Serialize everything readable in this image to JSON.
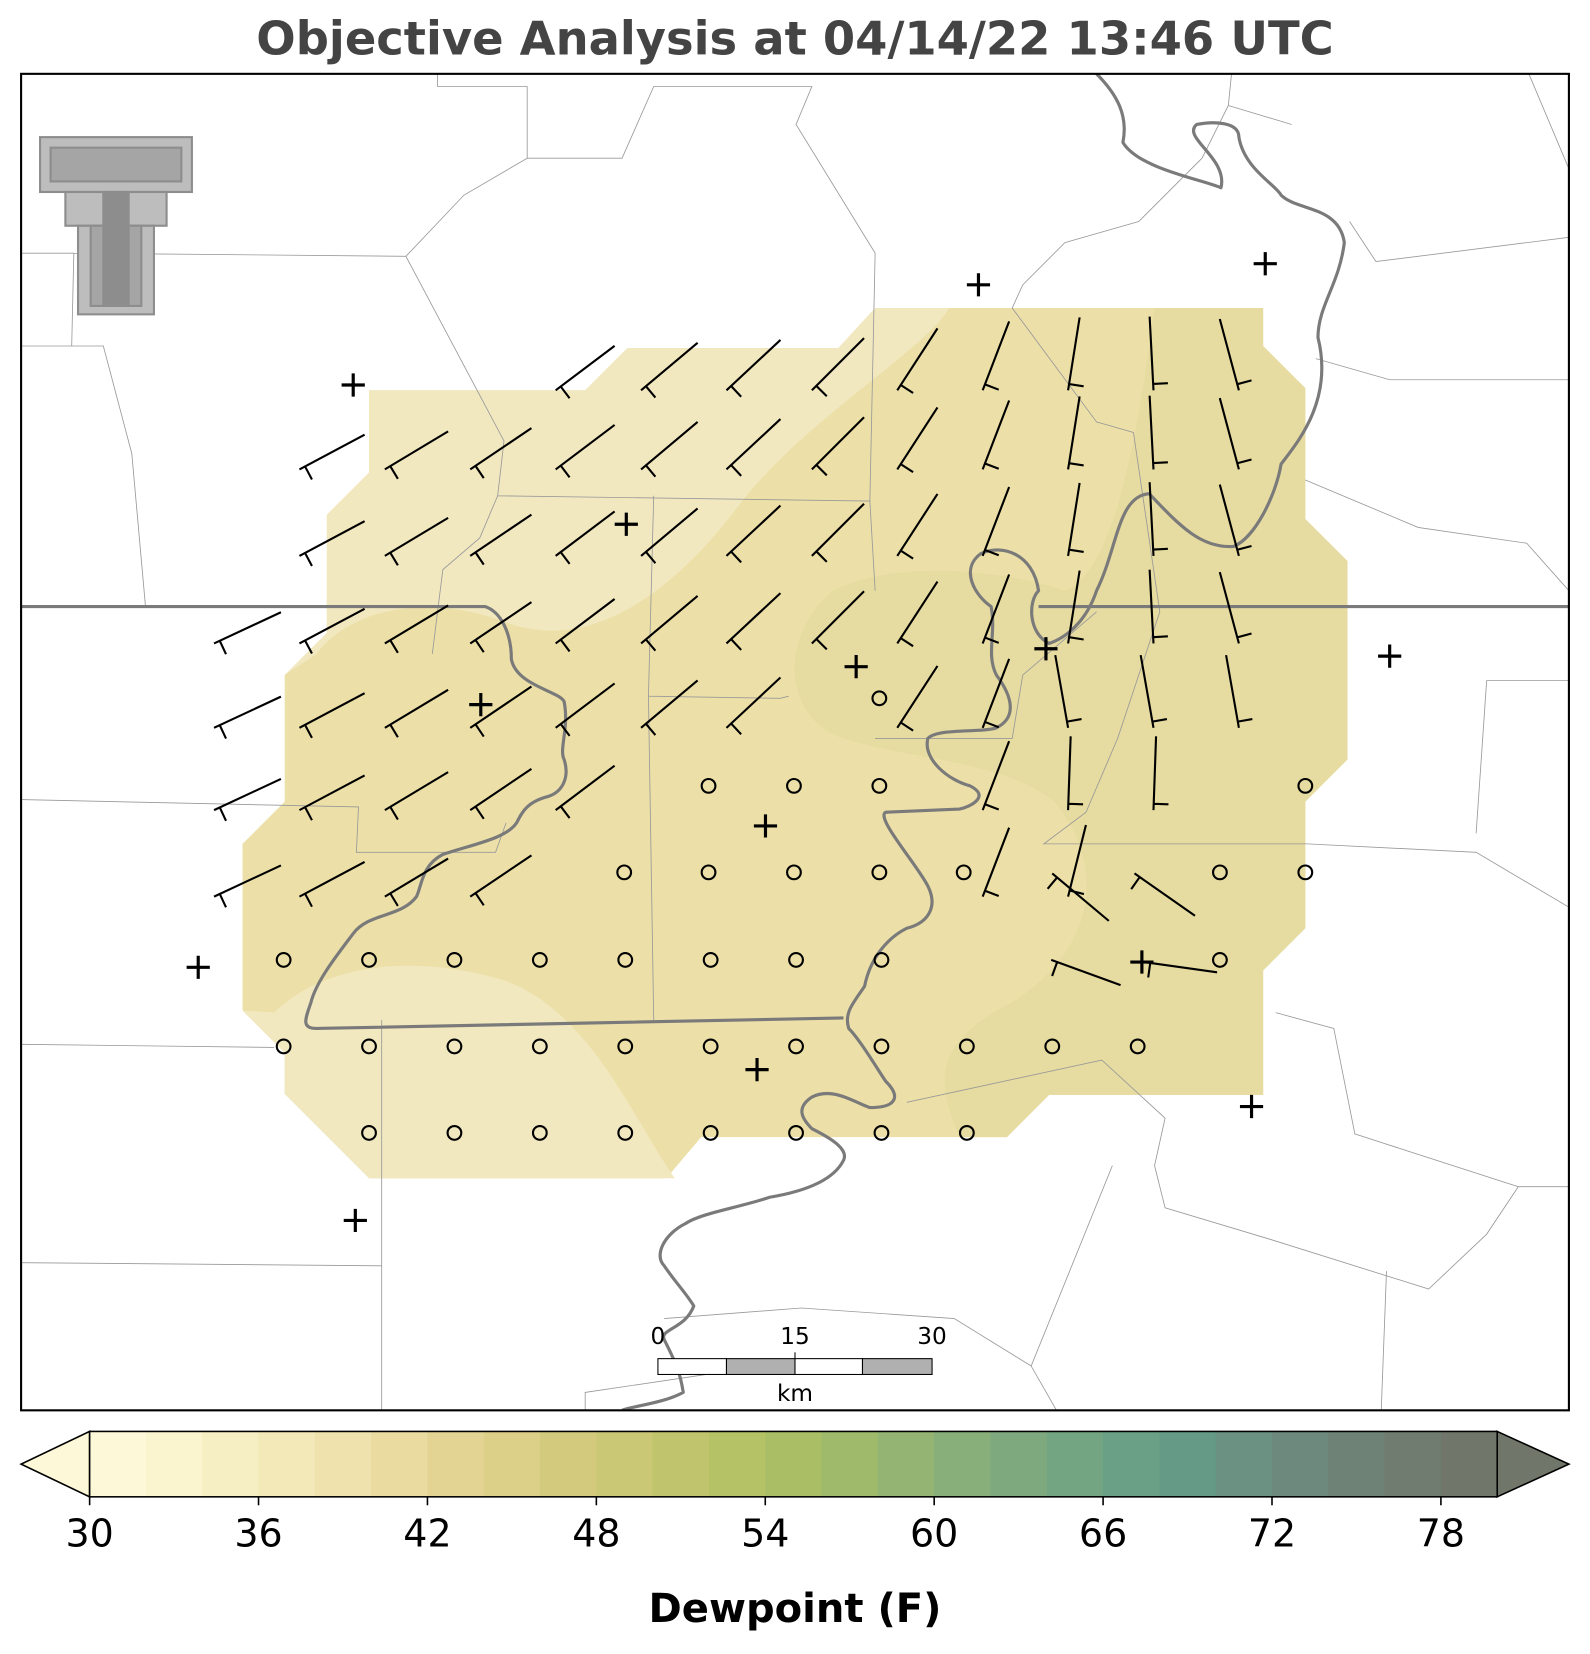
{
  "title": "Objective Analysis at 04/14/22 13:46 UTC",
  "colorbar": {
    "label": "Dewpoint (F)",
    "range": [
      30,
      80
    ],
    "ticks": [
      30,
      36,
      42,
      48,
      54,
      60,
      66,
      72,
      78
    ],
    "colors": [
      "#fdf9d8",
      "#fbf5cf",
      "#f7efc4",
      "#f3e8b8",
      "#efe2ac",
      "#eadba0",
      "#e3d494",
      "#dccf88",
      "#d3ca7e",
      "#cac775",
      "#c0c46c",
      "#b5c266",
      "#aabf65",
      "#9fba6b",
      "#93b472",
      "#88ae79",
      "#7ea97e",
      "#74a582",
      "#6aa085",
      "#659a87",
      "#6a9182",
      "#6d887c",
      "#6f8276",
      "#707c70",
      "#707669"
    ]
  },
  "scale_bar": {
    "labels": [
      "0",
      "15",
      "30"
    ],
    "unit": "km"
  }
}
